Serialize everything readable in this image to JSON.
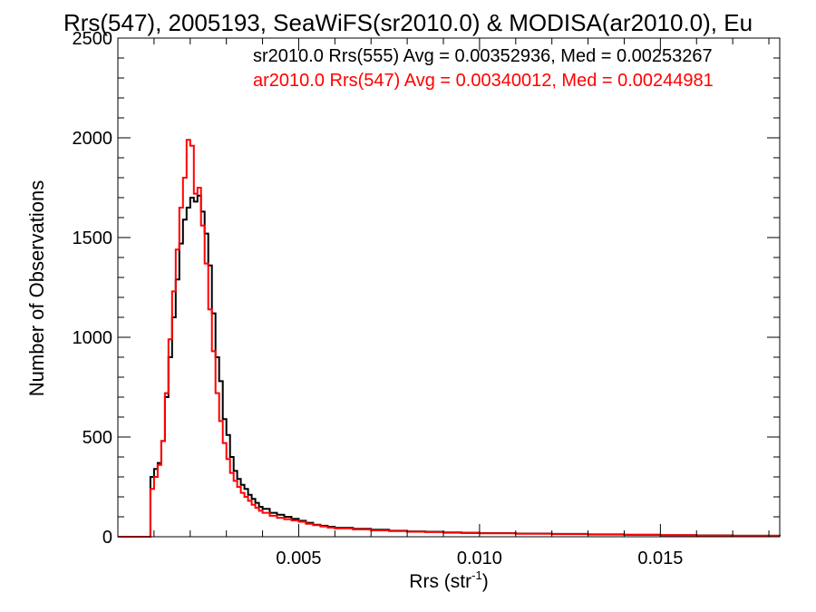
{
  "chart_data": {
    "type": "line",
    "title": "Rrs(547), 2005193, SeaWiFS(sr2010.0) & MODISA(ar2010.0), Eu",
    "xlabel": "Rrs (str",
    "xlabel_sup": "-1",
    "xlabel_close": ")",
    "ylabel": "Number of Observations",
    "xlim": [
      0.0,
      0.0183
    ],
    "ylim": [
      0,
      2500
    ],
    "xticks": [
      0.005,
      0.01,
      0.015
    ],
    "xtick_labels": [
      "0.005",
      "0.010",
      "0.015"
    ],
    "yticks": [
      0,
      500,
      1000,
      1500,
      2000,
      2500
    ],
    "ytick_labels": [
      "0",
      "500",
      "1000",
      "1500",
      "2000",
      "2500"
    ],
    "grid": false,
    "legend_position": "top-right",
    "annotations": [
      {
        "text": "sr2010.0 Rrs(555) Avg = 0.00352936, Med = 0.00253267",
        "color": "#000000"
      },
      {
        "text": "ar2010.0 Rrs(547) Avg = 0.00340012, Med = 0.00244981",
        "color": "#ff0000"
      }
    ],
    "series": [
      {
        "color": "#000000",
        "x": [
          0.0,
          0.0008,
          0.0009,
          0.001,
          0.0011,
          0.0012,
          0.0013,
          0.0014,
          0.0015,
          0.0016,
          0.0017,
          0.0018,
          0.0019,
          0.002,
          0.0021,
          0.0022,
          0.0023,
          0.0024,
          0.0025,
          0.0026,
          0.0027,
          0.0028,
          0.0029,
          0.003,
          0.0031,
          0.0032,
          0.0033,
          0.0034,
          0.0035,
          0.0036,
          0.0037,
          0.0038,
          0.0039,
          0.004,
          0.0042,
          0.0044,
          0.0046,
          0.0048,
          0.005,
          0.0052,
          0.0054,
          0.0056,
          0.0058,
          0.006,
          0.0065,
          0.007,
          0.0075,
          0.008,
          0.0085,
          0.009,
          0.0095,
          0.01,
          0.011,
          0.012,
          0.013,
          0.014,
          0.015,
          0.016,
          0.017,
          0.0183
        ],
        "y": [
          0,
          0,
          300,
          340,
          370,
          480,
          700,
          900,
          1100,
          1290,
          1470,
          1590,
          1650,
          1700,
          1680,
          1710,
          1630,
          1520,
          1360,
          1120,
          900,
          780,
          590,
          510,
          400,
          330,
          290,
          260,
          240,
          210,
          190,
          170,
          150,
          140,
          120,
          110,
          100,
          90,
          80,
          70,
          60,
          55,
          50,
          45,
          40,
          35,
          30,
          27,
          25,
          22,
          20,
          18,
          16,
          14,
          12,
          10,
          8,
          7,
          5,
          4
        ]
      },
      {
        "color": "#ff0000",
        "x": [
          0.0,
          0.0008,
          0.0009,
          0.001,
          0.0011,
          0.0012,
          0.0013,
          0.0014,
          0.0015,
          0.0016,
          0.0017,
          0.0018,
          0.0019,
          0.002,
          0.0021,
          0.0022,
          0.0023,
          0.0024,
          0.0025,
          0.0026,
          0.0027,
          0.0028,
          0.0029,
          0.003,
          0.0031,
          0.0032,
          0.0033,
          0.0034,
          0.0035,
          0.0036,
          0.0037,
          0.0038,
          0.0039,
          0.004,
          0.0042,
          0.0044,
          0.0046,
          0.0048,
          0.005,
          0.0052,
          0.0054,
          0.0056,
          0.0058,
          0.006,
          0.0065,
          0.007,
          0.0075,
          0.008,
          0.0085,
          0.009,
          0.0095,
          0.01,
          0.011,
          0.012,
          0.013,
          0.014,
          0.015,
          0.016,
          0.017,
          0.0183
        ],
        "y": [
          0,
          0,
          240,
          300,
          360,
          480,
          720,
          990,
          1230,
          1440,
          1650,
          1800,
          1990,
          1960,
          1720,
          1750,
          1560,
          1370,
          1140,
          930,
          720,
          580,
          470,
          390,
          320,
          280,
          250,
          220,
          200,
          180,
          160,
          145,
          130,
          120,
          105,
          95,
          88,
          82,
          75,
          65,
          58,
          52,
          46,
          42,
          37,
          32,
          28,
          25,
          23,
          20,
          18,
          17,
          15,
          13,
          11,
          9,
          8,
          6,
          5,
          4
        ]
      }
    ]
  }
}
